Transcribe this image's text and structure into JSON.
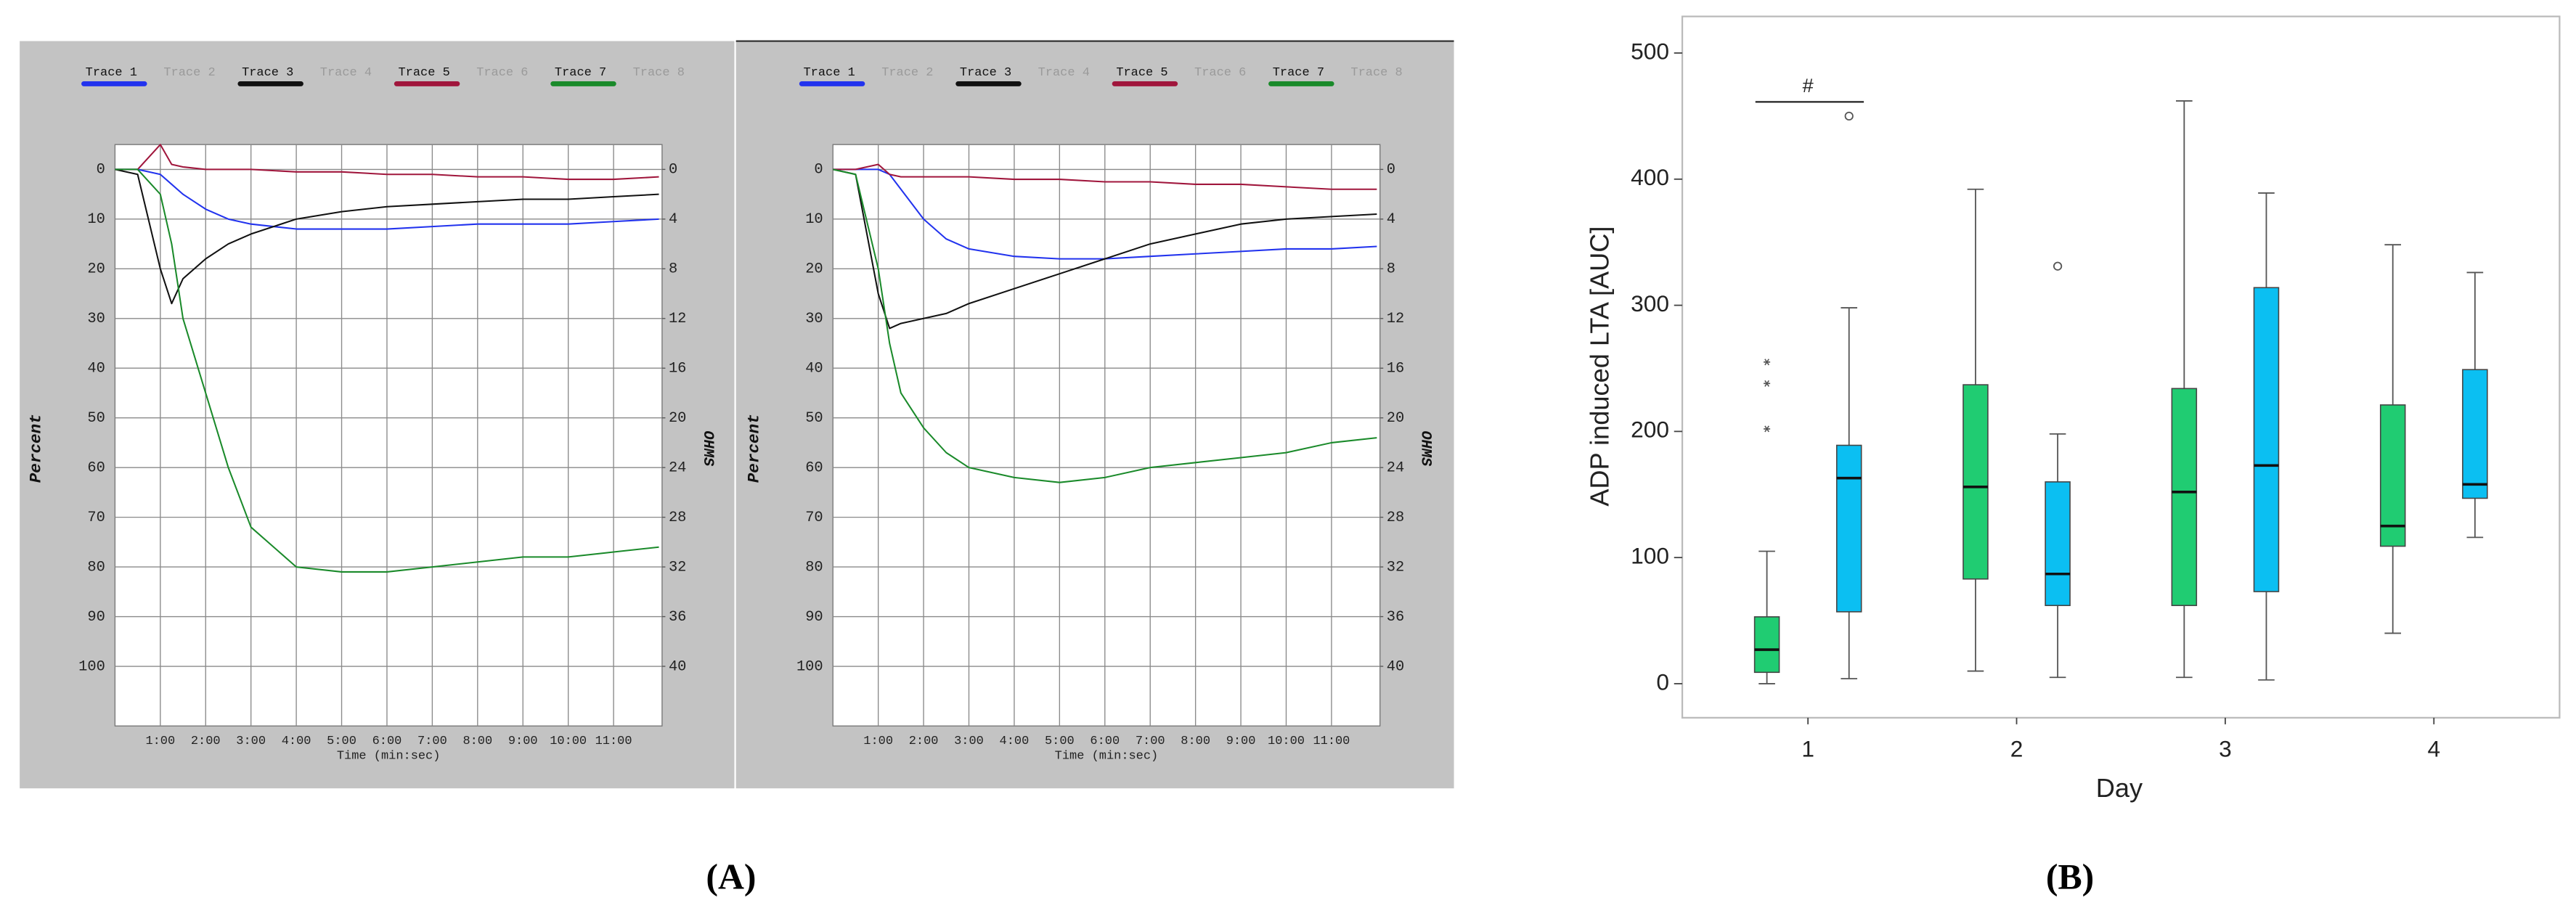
{
  "panel_labels": [
    "(A)",
    "(B)"
  ],
  "chart_data": [
    {
      "type": "line",
      "x": [
        0,
        0.5,
        1,
        1.25,
        1.5,
        2,
        2.5,
        3,
        4,
        5,
        6,
        7,
        8,
        9,
        10,
        11,
        12
      ],
      "xlim": [
        0,
        12.07
      ],
      "xticks": [
        {
          "value": 1,
          "label": "1:00"
        },
        {
          "value": 2,
          "label": "2:00"
        },
        {
          "value": 3,
          "label": "3:00"
        },
        {
          "value": 4,
          "label": "4:00"
        },
        {
          "value": 5,
          "label": "5:00"
        },
        {
          "value": 6,
          "label": "6:00"
        },
        {
          "value": 7,
          "label": "7:00"
        },
        {
          "value": 8,
          "label": "8:00"
        },
        {
          "value": 9,
          "label": "9:00"
        },
        {
          "value": 10,
          "label": "10:00"
        },
        {
          "value": 11,
          "label": "11:00"
        }
      ],
      "xlabel": "Time (min:sec)",
      "ylabel": "Percent",
      "y2label": "OHMS",
      "ylim": [
        112,
        -5
      ],
      "yticks": [
        0,
        10,
        20,
        30,
        40,
        50,
        60,
        70,
        80,
        90,
        100
      ],
      "y2lim": [
        44.8,
        -2
      ],
      "y2ticks": [
        0,
        4,
        8,
        12,
        16,
        20,
        24,
        28,
        32,
        36,
        40
      ],
      "grid": true,
      "series": [
        {
          "name": "Trace 1",
          "color": "#2233ee",
          "values": [
            0,
            0,
            1,
            3,
            5,
            8,
            10,
            11,
            12,
            12,
            12,
            11.5,
            11,
            11,
            11,
            10.5,
            10
          ]
        },
        {
          "name": "Trace 2"
        },
        {
          "name": "Trace 3",
          "color": "#111111",
          "values": [
            0,
            1,
            20,
            27,
            22,
            18,
            15,
            13,
            10,
            8.5,
            7.5,
            7,
            6.5,
            6,
            6,
            5.5,
            5
          ]
        },
        {
          "name": "Trace 4"
        },
        {
          "name": "Trace 5",
          "color": "#a0163c",
          "values": [
            0,
            0,
            -5,
            -1,
            -0.5,
            0,
            0,
            0,
            0.5,
            0.5,
            1,
            1,
            1.5,
            1.5,
            2,
            2,
            1.5
          ]
        },
        {
          "name": "Trace 6"
        },
        {
          "name": "Trace 7",
          "color": "#1a8a2a",
          "values": [
            0,
            0,
            5,
            15,
            30,
            45,
            60,
            72,
            80,
            81,
            81,
            80,
            79,
            78,
            78,
            77,
            76
          ]
        },
        {
          "name": "Trace 8"
        }
      ]
    },
    {
      "type": "line",
      "x": [
        0,
        0.5,
        1,
        1.25,
        1.5,
        2,
        2.5,
        3,
        4,
        5,
        6,
        7,
        8,
        9,
        10,
        11,
        12
      ],
      "xlim": [
        0,
        12.07
      ],
      "xticks": [
        {
          "value": 1,
          "label": "1:00"
        },
        {
          "value": 2,
          "label": "2:00"
        },
        {
          "value": 3,
          "label": "3:00"
        },
        {
          "value": 4,
          "label": "4:00"
        },
        {
          "value": 5,
          "label": "5:00"
        },
        {
          "value": 6,
          "label": "6:00"
        },
        {
          "value": 7,
          "label": "7:00"
        },
        {
          "value": 8,
          "label": "8:00"
        },
        {
          "value": 9,
          "label": "9:00"
        },
        {
          "value": 10,
          "label": "10:00"
        },
        {
          "value": 11,
          "label": "11:00"
        }
      ],
      "xlabel": "Time (min:sec)",
      "ylabel": "Percent",
      "y2label": "OHMS",
      "ylim": [
        112,
        -5
      ],
      "yticks": [
        0,
        10,
        20,
        30,
        40,
        50,
        60,
        70,
        80,
        90,
        100
      ],
      "y2lim": [
        44.8,
        -2
      ],
      "y2ticks": [
        0,
        4,
        8,
        12,
        16,
        20,
        24,
        28,
        32,
        36,
        40
      ],
      "grid": true,
      "series": [
        {
          "name": "Trace 1",
          "color": "#2233ee",
          "values": [
            0,
            0,
            0,
            1,
            4,
            10,
            14,
            16,
            17.5,
            18,
            18,
            17.5,
            17,
            16.5,
            16,
            16,
            15.5
          ]
        },
        {
          "name": "Trace 2"
        },
        {
          "name": "Trace 3",
          "color": "#111111",
          "values": [
            0,
            1,
            25,
            32,
            31,
            30,
            29,
            27,
            24,
            21,
            18,
            15,
            13,
            11,
            10,
            9.5,
            9
          ]
        },
        {
          "name": "Trace 4"
        },
        {
          "name": "Trace 5",
          "color": "#a0163c",
          "values": [
            0,
            0,
            -1,
            1,
            1.5,
            1.5,
            1.5,
            1.5,
            2,
            2,
            2.5,
            2.5,
            3,
            3,
            3.5,
            4,
            4
          ]
        },
        {
          "name": "Trace 6"
        },
        {
          "name": "Trace 7",
          "color": "#1a8a2a",
          "values": [
            0,
            1,
            20,
            35,
            45,
            52,
            57,
            60,
            62,
            63,
            62,
            60,
            59,
            58,
            57,
            55,
            54
          ]
        },
        {
          "name": "Trace 8"
        }
      ]
    },
    {
      "type": "box",
      "categories": [
        "1",
        "2",
        "3",
        "4"
      ],
      "xlabel": "Day",
      "ylabel": "ADP induced LTA [AUC]",
      "ylim": [
        -27,
        529
      ],
      "yticks": [
        0,
        100,
        200,
        300,
        400,
        500
      ],
      "annotation": "#",
      "series": [
        {
          "color": "#20cc72",
          "outlier_marker": "star",
          "min": [
            0,
            10,
            5,
            40
          ],
          "q1": [
            9,
            83,
            62,
            109
          ],
          "median": [
            27,
            156,
            152,
            125
          ],
          "q3": [
            53,
            237,
            234,
            221
          ],
          "max": [
            105,
            392,
            462,
            348
          ],
          "outliers": [
            [
              255,
              238,
              202
            ],
            [],
            [],
            []
          ]
        },
        {
          "color": "#0bbff2",
          "outlier_marker": "circle",
          "min": [
            4,
            5,
            3,
            116
          ],
          "q1": [
            57,
            62,
            73,
            147
          ],
          "median": [
            163,
            87,
            173,
            158
          ],
          "q3": [
            189,
            160,
            314,
            249
          ],
          "max": [
            298,
            198,
            389,
            326
          ],
          "outliers": [
            [
              450
            ],
            [
              331
            ],
            [],
            []
          ]
        }
      ]
    }
  ]
}
